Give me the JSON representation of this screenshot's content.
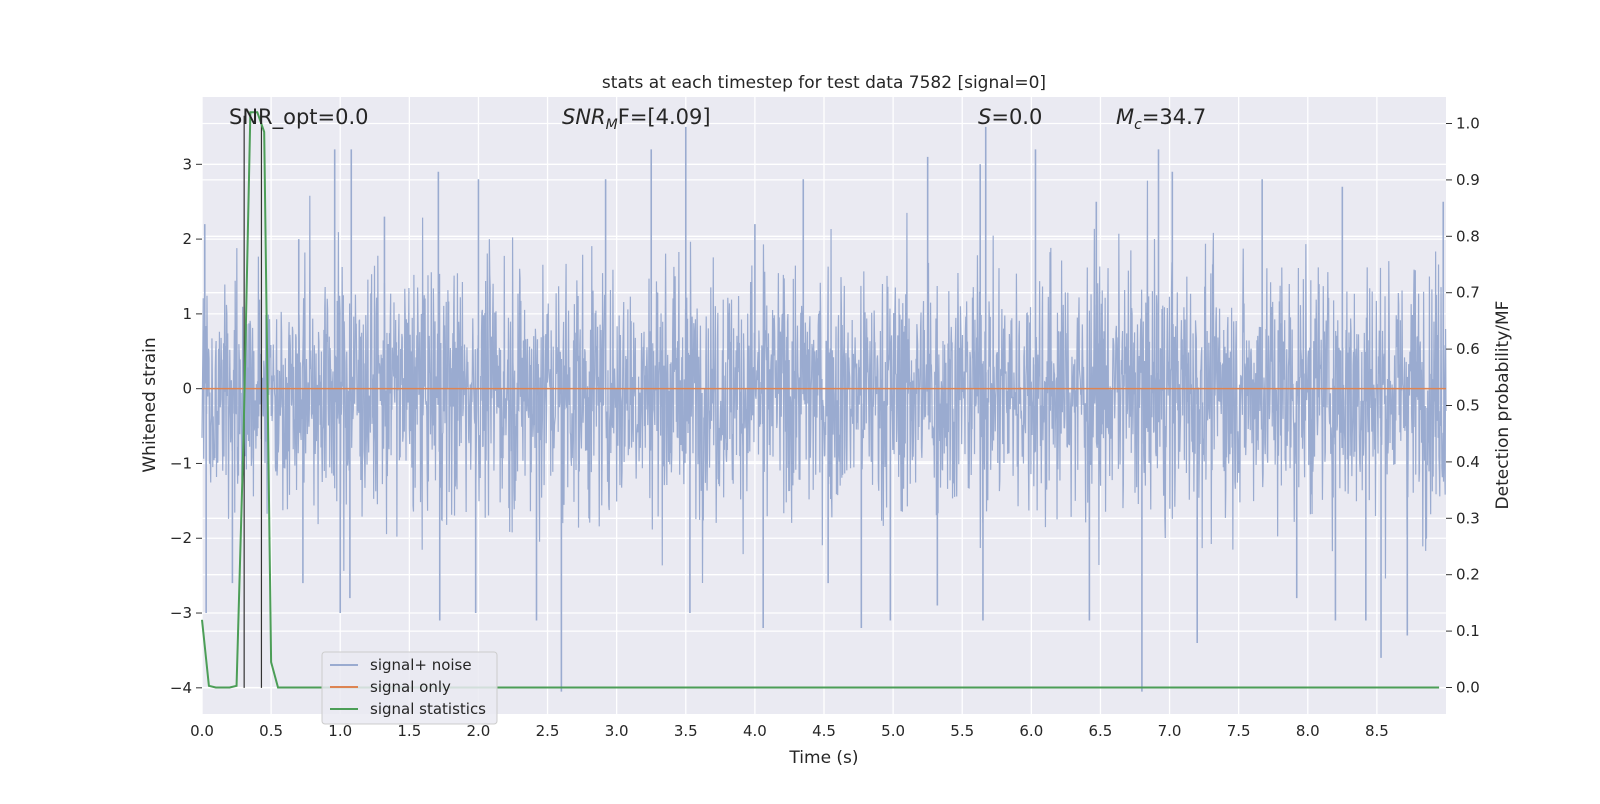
{
  "chart_data": {
    "type": "line",
    "title": "stats at each timestep for test data 7582 [signal=0]",
    "xlabel": "Time (s)",
    "ylabel_left": "Whitened strain",
    "ylabel_right": "Detection probability/MF",
    "xlim": [
      0.0,
      9.0
    ],
    "ylim_left": [
      -4.35,
      3.9
    ],
    "ylim_right": [
      -0.047,
      1.047
    ],
    "x_ticks": [
      "0.0",
      "0.5",
      "1.0",
      "1.5",
      "2.0",
      "2.5",
      "3.0",
      "3.5",
      "4.0",
      "4.5",
      "5.0",
      "5.5",
      "6.0",
      "6.5",
      "7.0",
      "7.5",
      "8.0",
      "8.5"
    ],
    "y_ticks_left": [
      "3",
      "2",
      "1",
      "0",
      "−1",
      "−2",
      "−3",
      "−4"
    ],
    "y_ticks_right": [
      "1.0",
      "0.9",
      "0.8",
      "0.7",
      "0.6",
      "0.5",
      "0.4",
      "0.3",
      "0.2",
      "0.1",
      "0.0"
    ],
    "grid": true,
    "legend_position": "lower-left",
    "annotations": {
      "snr_opt": "SNR_opt=0.0",
      "snr_mf_base": "SNR",
      "snr_mf_sub": "M",
      "snr_mf_rest": "F=[4.09]",
      "s_base": "S",
      "s_rest": "=0.0",
      "mc_base": "M",
      "mc_sub": "c",
      "mc_rest": "=34.7"
    },
    "series": [
      {
        "name": "signal+ noise",
        "color": "#9aabd0",
        "axis": "left",
        "kind": "dense noise trace, approx. Gaussian, sigma about 1, 9 s",
        "envelope_peaks": [
          [
            0.03,
            -3.0
          ],
          [
            0.02,
            2.2
          ],
          [
            0.22,
            -2.6
          ],
          [
            0.7,
            2.0
          ],
          [
            0.73,
            -2.6
          ],
          [
            0.96,
            3.2
          ],
          [
            1.0,
            -3.0
          ],
          [
            1.08,
            3.2
          ],
          [
            1.07,
            -2.8
          ],
          [
            1.32,
            2.3
          ],
          [
            1.71,
            2.9
          ],
          [
            1.72,
            -3.1
          ],
          [
            2.0,
            2.8
          ],
          [
            1.98,
            -3.0
          ],
          [
            2.42,
            -3.1
          ],
          [
            2.6,
            -4.05
          ],
          [
            2.92,
            2.8
          ],
          [
            3.25,
            3.2
          ],
          [
            3.5,
            3.5
          ],
          [
            3.53,
            -3.0
          ],
          [
            4.0,
            2.2
          ],
          [
            4.06,
            -3.2
          ],
          [
            4.35,
            2.8
          ],
          [
            4.53,
            -2.6
          ],
          [
            4.77,
            -3.2
          ],
          [
            4.98,
            -3.1
          ],
          [
            5.25,
            3.1
          ],
          [
            5.32,
            -2.9
          ],
          [
            5.63,
            3.0
          ],
          [
            5.67,
            3.5
          ],
          [
            5.65,
            -3.1
          ],
          [
            6.03,
            3.2
          ],
          [
            6.42,
            -3.1
          ],
          [
            6.47,
            2.5
          ],
          [
            6.8,
            -4.05
          ],
          [
            6.92,
            3.2
          ],
          [
            7.02,
            2.9
          ],
          [
            7.2,
            -3.4
          ],
          [
            7.67,
            2.8
          ],
          [
            7.92,
            -2.8
          ],
          [
            8.2,
            -3.1
          ],
          [
            8.25,
            2.7
          ],
          [
            8.42,
            -3.1
          ],
          [
            8.53,
            -3.6
          ],
          [
            8.72,
            -3.3
          ],
          [
            8.98,
            2.5
          ]
        ]
      },
      {
        "name": "signal only",
        "color": "#dd8452",
        "axis": "left",
        "x": [
          0.0,
          9.0
        ],
        "y": [
          0.0,
          0.0
        ]
      },
      {
        "name": "signal statistics",
        "color": "#4c9e57",
        "axis": "right",
        "x": [
          0.0,
          0.05,
          0.1,
          0.15,
          0.2,
          0.25,
          0.3,
          0.35,
          0.4,
          0.45,
          0.5,
          0.55,
          0.6,
          8.95
        ],
        "y": [
          0.12,
          0.003,
          0.0,
          0.0,
          0.0,
          0.003,
          0.44,
          1.02,
          1.02,
          0.985,
          0.045,
          0.0,
          0.0,
          0.0
        ]
      }
    ],
    "vertical_markers": {
      "color": "#333333",
      "x": [
        0.305,
        0.43
      ],
      "y_range_left": [
        -4.0,
        3.65
      ]
    }
  }
}
